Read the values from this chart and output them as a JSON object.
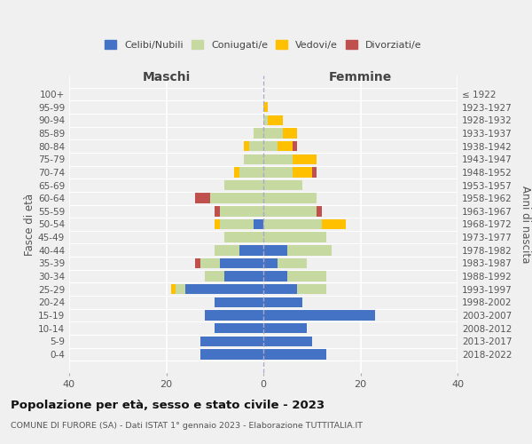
{
  "age_groups": [
    "0-4",
    "5-9",
    "10-14",
    "15-19",
    "20-24",
    "25-29",
    "30-34",
    "35-39",
    "40-44",
    "45-49",
    "50-54",
    "55-59",
    "60-64",
    "65-69",
    "70-74",
    "75-79",
    "80-84",
    "85-89",
    "90-94",
    "95-99",
    "100+"
  ],
  "birth_years": [
    "2018-2022",
    "2013-2017",
    "2008-2012",
    "2003-2007",
    "1998-2002",
    "1993-1997",
    "1988-1992",
    "1983-1987",
    "1978-1982",
    "1973-1977",
    "1968-1972",
    "1963-1967",
    "1958-1962",
    "1953-1957",
    "1948-1952",
    "1943-1947",
    "1938-1942",
    "1933-1937",
    "1928-1932",
    "1923-1927",
    "≤ 1922"
  ],
  "maschi": {
    "celibi": [
      13,
      13,
      10,
      12,
      10,
      16,
      8,
      9,
      5,
      0,
      2,
      0,
      0,
      0,
      0,
      0,
      0,
      0,
      0,
      0,
      0
    ],
    "coniugati": [
      0,
      0,
      0,
      0,
      0,
      2,
      4,
      4,
      5,
      8,
      7,
      9,
      11,
      8,
      5,
      4,
      3,
      2,
      0,
      0,
      0
    ],
    "vedovi": [
      0,
      0,
      0,
      0,
      0,
      1,
      0,
      0,
      0,
      0,
      1,
      0,
      0,
      0,
      1,
      0,
      1,
      0,
      0,
      0,
      0
    ],
    "divorziati": [
      0,
      0,
      0,
      0,
      0,
      0,
      0,
      1,
      0,
      0,
      0,
      1,
      3,
      0,
      0,
      0,
      0,
      0,
      0,
      0,
      0
    ]
  },
  "femmine": {
    "nubili": [
      13,
      10,
      9,
      23,
      8,
      7,
      5,
      3,
      5,
      0,
      0,
      0,
      0,
      0,
      0,
      0,
      0,
      0,
      0,
      0,
      0
    ],
    "coniugate": [
      0,
      0,
      0,
      0,
      0,
      6,
      8,
      6,
      9,
      13,
      12,
      11,
      11,
      8,
      6,
      6,
      3,
      4,
      1,
      0,
      0
    ],
    "vedove": [
      0,
      0,
      0,
      0,
      0,
      0,
      0,
      0,
      0,
      0,
      5,
      0,
      0,
      0,
      4,
      5,
      3,
      3,
      3,
      1,
      0
    ],
    "divorziate": [
      0,
      0,
      0,
      0,
      0,
      0,
      0,
      0,
      0,
      0,
      0,
      1,
      0,
      0,
      1,
      0,
      1,
      0,
      0,
      0,
      0
    ]
  },
  "colors": {
    "celibi_nubili": "#4472c4",
    "coniugati": "#c6d9a0",
    "vedovi": "#ffc000",
    "divorziati": "#c0504d"
  },
  "xlim": 40,
  "title": "Popolazione per età, sesso e stato civile - 2023",
  "subtitle": "COMUNE DI FURORE (SA) - Dati ISTAT 1° gennaio 2023 - Elaborazione TUTTITALIA.IT",
  "ylabel_left": "Fasce di età",
  "ylabel_right": "Anni di nascita",
  "xlabel_left": "Maschi",
  "xlabel_right": "Femmine",
  "background_color": "#f0f0f0"
}
